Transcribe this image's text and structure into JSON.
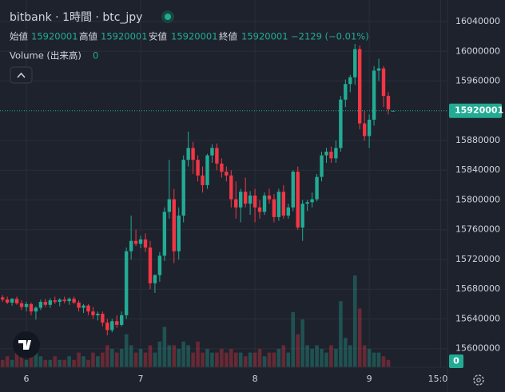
{
  "chart_data": {
    "type": "candlestick",
    "title": "bitbank · 1時間 · btc_jpy",
    "legend_labels": [
      "始値",
      "高値",
      "安値",
      "終値"
    ],
    "change": "−2129 (−0.01%)",
    "volume_label": "Volume (出来高)",
    "up_color": "#22ab94",
    "down_color": "#f23645",
    "grid": true,
    "categories": [
      null,
      null,
      null,
      null,
      null,
      "6",
      null,
      null,
      null,
      null,
      null,
      null,
      null,
      null,
      null,
      null,
      null,
      null,
      null,
      null,
      null,
      null,
      null,
      null,
      null,
      null,
      null,
      null,
      null,
      "7",
      null,
      null,
      null,
      null,
      null,
      null,
      null,
      null,
      null,
      null,
      null,
      null,
      null,
      null,
      null,
      null,
      null,
      null,
      null,
      null,
      null,
      null,
      null,
      "8",
      null,
      null,
      null,
      null,
      null,
      null,
      null,
      null,
      null,
      null,
      null,
      null,
      null,
      null,
      null,
      null,
      null,
      null,
      null,
      null,
      null,
      null,
      null,
      "9",
      null,
      null,
      null,
      null,
      null,
      null,
      null,
      null,
      null,
      null,
      null,
      null,
      null,
      null,
      "15:00",
      null
    ],
    "open": [
      15669000,
      15666000,
      15662000,
      15667000,
      15661000,
      15656000,
      15660000,
      15650000,
      15655000,
      15663000,
      15659000,
      15665000,
      15663000,
      15666000,
      15664000,
      15667000,
      15662000,
      15655000,
      15658000,
      15650000,
      15645000,
      15647000,
      15635000,
      15625000,
      15637000,
      15632000,
      15645000,
      15731000,
      15745000,
      15741000,
      15747000,
      15736000,
      15688000,
      15699000,
      15725000,
      15784000,
      15801000,
      15731000,
      15779000,
      15854000,
      15870000,
      15854000,
      15833000,
      15820000,
      15860000,
      15870000,
      15849000,
      15838000,
      15833000,
      15801000,
      15790000,
      15811000,
      15795000,
      15806000,
      15790000,
      15784000,
      15806000,
      15801000,
      15777000,
      15811000,
      15779000,
      15790000,
      15838000,
      15763000,
      15795000,
      15797000,
      15801000,
      15831000,
      15860000,
      15865000,
      15856000,
      15870000,
      15935000,
      15956000,
      15965000,
      16003000,
      15903000,
      15886000,
      15908000,
      15974000,
      15977000,
      15940000,
      15920001,
      null,
      null,
      null,
      null,
      null,
      null,
      null,
      null,
      null,
      null,
      null
    ],
    "high": [
      15672000,
      15670000,
      15668000,
      15670000,
      15665000,
      15663000,
      15662000,
      15657000,
      15666000,
      15667000,
      15668000,
      15670000,
      15668000,
      15670000,
      15669000,
      15670000,
      15665000,
      15660000,
      15660000,
      15656000,
      15650000,
      15650000,
      15640000,
      15640000,
      15645000,
      15650000,
      15736000,
      15779000,
      15760000,
      15752000,
      15755000,
      15745000,
      15700000,
      15730000,
      15790000,
      15854000,
      15815000,
      15790000,
      15860000,
      15892000,
      15878000,
      15860000,
      15845000,
      15862000,
      15875000,
      15876000,
      15856000,
      15845000,
      15840000,
      15825000,
      15815000,
      15830000,
      15812000,
      15815000,
      15800000,
      15810000,
      15815000,
      15808000,
      15815000,
      15820000,
      15795000,
      15840000,
      15845000,
      15800000,
      15800000,
      15810000,
      15835000,
      15865000,
      15870000,
      15872000,
      15880000,
      15940000,
      15962000,
      15968000,
      16010000,
      16008000,
      15920000,
      15915000,
      15980000,
      15990000,
      15980000,
      15945000,
      15920001,
      null,
      null,
      null,
      null,
      null,
      null,
      null,
      null,
      null,
      null,
      null
    ],
    "low": [
      15663000,
      15660000,
      15658000,
      15659000,
      15652000,
      15650000,
      15645000,
      15639000,
      15652000,
      15656000,
      15655000,
      15660000,
      15657000,
      15661000,
      15659000,
      15660000,
      15650000,
      15648000,
      15645000,
      15640000,
      15638000,
      15630000,
      15618000,
      15622000,
      15628000,
      15630000,
      15640000,
      15720000,
      15738000,
      15735000,
      15730000,
      15680000,
      15675000,
      15690000,
      15718000,
      15775000,
      15715000,
      15720000,
      15770000,
      15845000,
      15835000,
      15825000,
      15810000,
      15815000,
      15850000,
      15840000,
      15830000,
      15825000,
      15790000,
      15775000,
      15770000,
      15790000,
      15780000,
      15770000,
      15775000,
      15780000,
      15795000,
      15770000,
      15772000,
      15775000,
      15775000,
      15785000,
      15760000,
      15745000,
      15785000,
      15790000,
      15798000,
      15825000,
      15850000,
      15850000,
      15850000,
      15865000,
      15925000,
      15945000,
      15955000,
      15895000,
      15880000,
      15870000,
      15900000,
      15960000,
      15925000,
      15915000,
      15920001,
      null,
      null,
      null,
      null,
      null,
      null,
      null,
      null,
      null,
      null,
      null
    ],
    "close": [
      15666000,
      15662000,
      15667000,
      15661000,
      15656000,
      15660000,
      15650000,
      15655000,
      15663000,
      15659000,
      15665000,
      15663000,
      15666000,
      15664000,
      15667000,
      15662000,
      15655000,
      15658000,
      15650000,
      15645000,
      15647000,
      15635000,
      15625000,
      15637000,
      15632000,
      15645000,
      15731000,
      15745000,
      15741000,
      15747000,
      15736000,
      15688000,
      15699000,
      15725000,
      15784000,
      15801000,
      15731000,
      15779000,
      15854000,
      15870000,
      15854000,
      15833000,
      15820000,
      15860000,
      15870000,
      15849000,
      15838000,
      15833000,
      15801000,
      15790000,
      15811000,
      15795000,
      15806000,
      15790000,
      15784000,
      15806000,
      15801000,
      15777000,
      15811000,
      15779000,
      15790000,
      15838000,
      15763000,
      15795000,
      15797000,
      15801000,
      15831000,
      15860000,
      15865000,
      15856000,
      15870000,
      15935000,
      15956000,
      15965000,
      16003000,
      15903000,
      15886000,
      15908000,
      15974000,
      15977000,
      15940000,
      15922000,
      15920001,
      null,
      null,
      null,
      null,
      null,
      null,
      null,
      null,
      null,
      null,
      null
    ],
    "volume": [
      1,
      1.5,
      1,
      2,
      1.5,
      1,
      2,
      2.5,
      1.5,
      1,
      1,
      1.5,
      1,
      1,
      1.5,
      1,
      2,
      1.5,
      1,
      2,
      1.5,
      2,
      3,
      2.5,
      2,
      2.5,
      4.5,
      3,
      2,
      2.5,
      2,
      3,
      2,
      3.5,
      5.5,
      3,
      3,
      2.5,
      3.5,
      3,
      2,
      3.5,
      2,
      2.5,
      2,
      2,
      2.5,
      2,
      2.5,
      2,
      2,
      1.5,
      2,
      2,
      2.5,
      1.5,
      2,
      2,
      2.5,
      3,
      2,
      7.5,
      4.5,
      6.5,
      3,
      2.5,
      3,
      2.5,
      2,
      3,
      2.5,
      9,
      4,
      3,
      12.5,
      8,
      3,
      2.5,
      2,
      2,
      1.5,
      1,
      0,
      null,
      null,
      null,
      null,
      null,
      null,
      null,
      null,
      null,
      null,
      null
    ],
    "volume_lim": [
      0,
      50
    ],
    "ylim": [
      15575000,
      16069000
    ],
    "yticks": [
      15600000,
      15640000,
      15680000,
      15720000,
      15760000,
      15800000,
      15840000,
      15880000,
      15960000,
      16000000,
      16040000
    ]
  }
}
